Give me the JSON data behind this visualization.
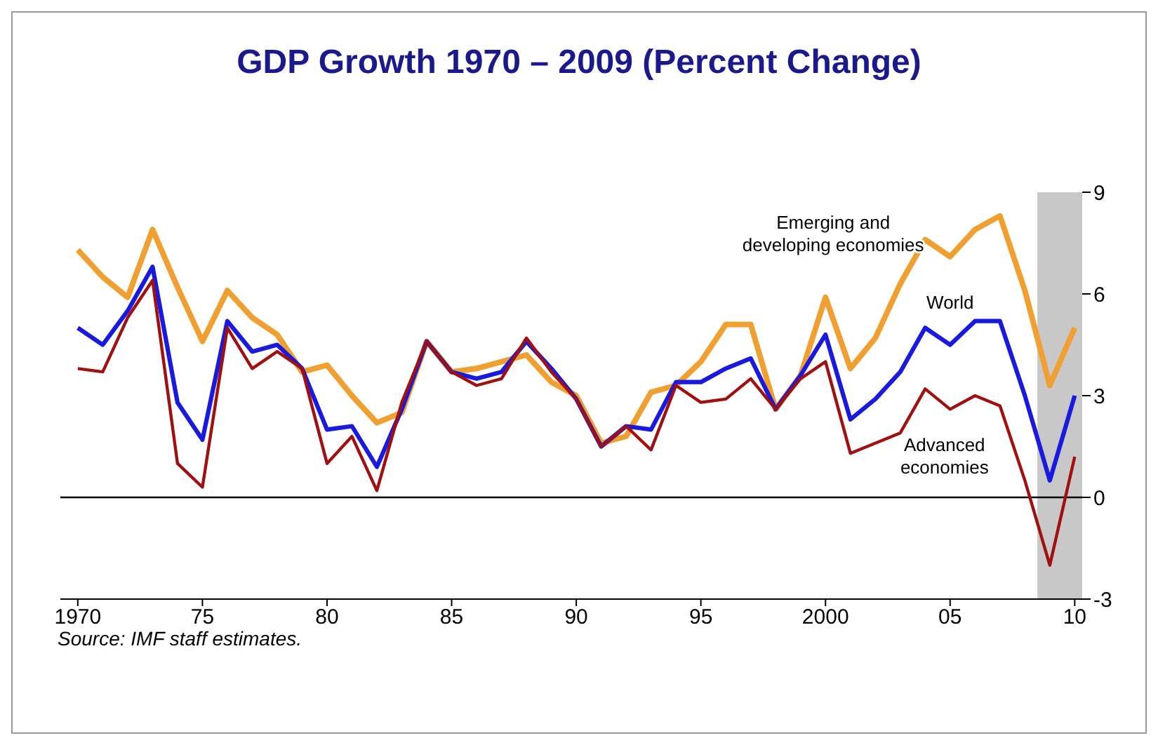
{
  "chart_data": {
    "type": "line",
    "title": "GDP Growth 1970 – 2009 (Percent Change)",
    "annotations": [
      "Source: IMF staff estimates."
    ],
    "x": [
      1970,
      1971,
      1972,
      1973,
      1974,
      1975,
      1976,
      1977,
      1978,
      1979,
      1980,
      1981,
      1982,
      1983,
      1984,
      1985,
      1986,
      1987,
      1988,
      1989,
      1990,
      1991,
      1992,
      1993,
      1994,
      1995,
      1996,
      1997,
      1998,
      1999,
      2000,
      2001,
      2002,
      2003,
      2004,
      2005,
      2006,
      2007,
      2008,
      2009,
      2010
    ],
    "series": [
      {
        "name": "Emerging and developing economies",
        "color": "#f0a030",
        "values": [
          7.3,
          6.5,
          5.9,
          7.9,
          6.2,
          4.6,
          6.1,
          5.3,
          4.8,
          3.7,
          3.9,
          3.0,
          2.2,
          2.5,
          4.6,
          3.7,
          3.8,
          4.0,
          4.2,
          3.4,
          3.0,
          1.6,
          1.8,
          3.1,
          3.3,
          4.0,
          5.1,
          5.1,
          2.6,
          3.6,
          5.9,
          3.8,
          4.7,
          6.3,
          7.6,
          7.1,
          7.9,
          8.3,
          6.1,
          3.3,
          5.0
        ]
      },
      {
        "name": "World",
        "color": "#1a1adf",
        "values": [
          5.0,
          4.5,
          5.5,
          6.8,
          2.8,
          1.7,
          5.2,
          4.3,
          4.5,
          3.8,
          2.0,
          2.1,
          0.9,
          2.6,
          4.6,
          3.7,
          3.5,
          3.7,
          4.6,
          3.8,
          2.9,
          1.5,
          2.1,
          2.0,
          3.4,
          3.4,
          3.8,
          4.1,
          2.6,
          3.6,
          4.8,
          2.3,
          2.9,
          3.7,
          5.0,
          4.5,
          5.2,
          5.2,
          3.0,
          0.5,
          3.0
        ]
      },
      {
        "name": "Advanced economies",
        "color": "#a01010",
        "values": [
          3.8,
          3.7,
          5.3,
          6.4,
          1.0,
          0.3,
          5.0,
          3.8,
          4.3,
          3.8,
          1.0,
          1.8,
          0.2,
          2.8,
          4.6,
          3.7,
          3.3,
          3.5,
          4.7,
          3.7,
          2.9,
          1.5,
          2.1,
          1.4,
          3.3,
          2.8,
          2.9,
          3.5,
          2.6,
          3.5,
          4.0,
          1.3,
          1.6,
          1.9,
          3.2,
          2.6,
          3.0,
          2.7,
          0.5,
          -2.0,
          1.2
        ]
      }
    ],
    "xlim": [
      1969.3,
      2010.3
    ],
    "xticks": [
      1970,
      {
        "value": 1975,
        "label": "75"
      },
      {
        "value": 1980,
        "label": "80"
      },
      {
        "value": 1985,
        "label": "85"
      },
      {
        "value": 1990,
        "label": "90"
      },
      {
        "value": 1995,
        "label": "95"
      },
      2000,
      {
        "value": 2005,
        "label": "05"
      },
      {
        "value": 2010,
        "label": "10"
      }
    ],
    "ylim": [
      -3,
      9
    ],
    "yticks": [
      -3,
      0,
      3,
      6,
      9
    ],
    "ref_lines": [
      {
        "axis": "y",
        "value": 0,
        "color": "#000000"
      }
    ],
    "bands": [
      {
        "axis": "x",
        "from": 2008.5,
        "to": 2010.3,
        "color": "#c8c8c8"
      }
    ],
    "grid": false,
    "legend": false,
    "marker": "none",
    "line_style": "solid"
  }
}
